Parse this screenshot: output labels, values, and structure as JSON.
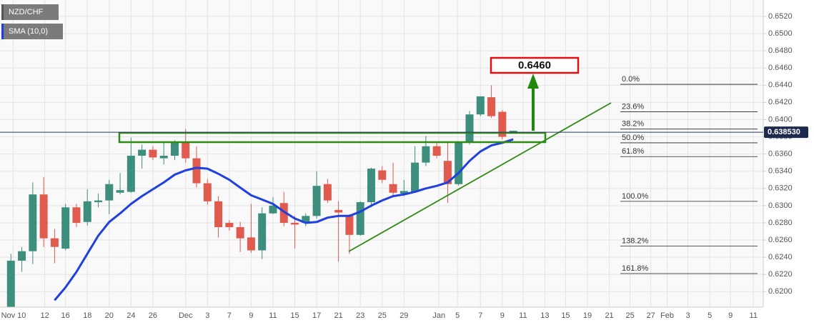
{
  "chart_data": {
    "type": "candlestick",
    "symbol_label": "NZD/CHF",
    "up_color": "#3e8e7e",
    "down_color": "#e05a4e",
    "candles": {
      "open": [
        0.618,
        0.6236,
        0.6247,
        0.6313,
        0.6262,
        0.625,
        0.6298,
        0.6281,
        0.6304,
        0.6306,
        0.6315,
        0.6316,
        0.6358,
        0.6365,
        0.6355,
        0.6358,
        0.6373,
        0.6355,
        0.6326,
        0.6305,
        0.628,
        0.6275,
        0.6263,
        0.6248,
        0.6291,
        0.6303,
        0.628,
        0.628,
        0.6288,
        0.6325,
        0.6295,
        0.6288,
        0.6266,
        0.6304,
        0.6341,
        0.6325,
        0.6314,
        0.6316,
        0.635,
        0.6369,
        0.6352,
        0.6325,
        0.6373,
        0.6406,
        0.6426,
        0.6409,
        0.6385
      ],
      "high": [
        0.6244,
        0.6252,
        0.6327,
        0.6333,
        0.6273,
        0.6302,
        0.6302,
        0.6319,
        0.6314,
        0.633,
        0.6338,
        0.6379,
        0.6371,
        0.6369,
        0.6375,
        0.6376,
        0.6389,
        0.6369,
        0.6331,
        0.6311,
        0.6283,
        0.6281,
        0.6302,
        0.6298,
        0.631,
        0.6316,
        0.6288,
        0.6291,
        0.634,
        0.6331,
        0.6305,
        0.629,
        0.6305,
        0.6344,
        0.6346,
        0.635,
        0.633,
        0.6369,
        0.6381,
        0.6373,
        0.6373,
        0.6375,
        0.641,
        0.6427,
        0.644,
        0.6411,
        0.6387
      ],
      "low": [
        0.618,
        0.6223,
        0.6232,
        0.6252,
        0.6233,
        0.6248,
        0.6275,
        0.6277,
        0.6298,
        0.629,
        0.6313,
        0.6315,
        0.6343,
        0.6353,
        0.6348,
        0.6353,
        0.635,
        0.6321,
        0.6301,
        0.6263,
        0.6271,
        0.6246,
        0.6245,
        0.6238,
        0.629,
        0.6276,
        0.625,
        0.6276,
        0.6285,
        0.6303,
        0.6235,
        0.6244,
        0.6265,
        0.6298,
        0.6326,
        0.6311,
        0.6311,
        0.6315,
        0.6346,
        0.6355,
        0.6303,
        0.6323,
        0.6371,
        0.6404,
        0.6402,
        0.6377,
        0.6384
      ],
      "close": [
        0.6236,
        0.6247,
        0.6313,
        0.6262,
        0.6252,
        0.6298,
        0.628,
        0.6305,
        0.6306,
        0.6325,
        0.6318,
        0.6358,
        0.6365,
        0.6356,
        0.6358,
        0.6373,
        0.6355,
        0.6326,
        0.6305,
        0.6275,
        0.6275,
        0.6262,
        0.6248,
        0.6291,
        0.63,
        0.628,
        0.6278,
        0.6288,
        0.6323,
        0.6306,
        0.6292,
        0.6266,
        0.6304,
        0.6343,
        0.633,
        0.6315,
        0.6317,
        0.635,
        0.6369,
        0.6358,
        0.6325,
        0.6373,
        0.6406,
        0.6427,
        0.6404,
        0.638,
        0.6387
      ]
    },
    "sma": {
      "name": "SMA (10,0)",
      "color": "#1f3fe0",
      "values": [
        null,
        null,
        null,
        null,
        0.619,
        0.6205,
        0.6223,
        0.6244,
        0.6265,
        0.6281,
        0.6291,
        0.6302,
        0.6311,
        0.6319,
        0.6327,
        0.6336,
        0.6341,
        0.6344,
        0.6343,
        0.6337,
        0.633,
        0.6321,
        0.6312,
        0.6307,
        0.6302,
        0.6293,
        0.6285,
        0.628,
        0.6281,
        0.6286,
        0.6288,
        0.6288,
        0.6293,
        0.63,
        0.6306,
        0.6311,
        0.6313,
        0.6316,
        0.632,
        0.6323,
        0.6327,
        0.6338,
        0.6352,
        0.6363,
        0.637,
        0.6373,
        0.6377
      ]
    },
    "ylim": [
      0.6182,
      0.6539
    ],
    "yticks": [
      {
        "value": 0.62,
        "label": "0.6200"
      },
      {
        "value": 0.622,
        "label": "0.6220"
      },
      {
        "value": 0.624,
        "label": "0.6240"
      },
      {
        "value": 0.626,
        "label": "0.6260"
      },
      {
        "value": 0.628,
        "label": "0.6280"
      },
      {
        "value": 0.63,
        "label": "0.6300"
      },
      {
        "value": 0.632,
        "label": "0.6320"
      },
      {
        "value": 0.634,
        "label": "0.6340"
      },
      {
        "value": 0.636,
        "label": "0.6360"
      },
      {
        "value": 0.638,
        "label": "0.6380"
      },
      {
        "value": 0.64,
        "label": "0.6400"
      },
      {
        "value": 0.642,
        "label": "0.6420"
      },
      {
        "value": 0.644,
        "label": "0.6440"
      },
      {
        "value": 0.646,
        "label": "0.6460"
      },
      {
        "value": 0.648,
        "label": "0.6480"
      },
      {
        "value": 0.65,
        "label": "0.6500"
      },
      {
        "value": 0.652,
        "label": "0.6520"
      }
    ],
    "xlim": [
      -1,
      68.9
    ],
    "xticks": [
      {
        "value": 0.2,
        "label": "Nov 10"
      },
      {
        "value": 3.1,
        "label": "12"
      },
      {
        "value": 5,
        "label": "16"
      },
      {
        "value": 7,
        "label": "18"
      },
      {
        "value": 9,
        "label": "20"
      },
      {
        "value": 11,
        "label": "24"
      },
      {
        "value": 13,
        "label": "26"
      },
      {
        "value": 16,
        "label": "Dec"
      },
      {
        "value": 18,
        "label": "3"
      },
      {
        "value": 20,
        "label": "7"
      },
      {
        "value": 22,
        "label": "9"
      },
      {
        "value": 24,
        "label": "11"
      },
      {
        "value": 26,
        "label": "15"
      },
      {
        "value": 28,
        "label": "17"
      },
      {
        "value": 30,
        "label": "21"
      },
      {
        "value": 32,
        "label": "23"
      },
      {
        "value": 34,
        "label": "25"
      },
      {
        "value": 36,
        "label": "29"
      },
      {
        "value": 39.2,
        "label": "Jan"
      },
      {
        "value": 40.9,
        "label": "5"
      },
      {
        "value": 43,
        "label": "7"
      },
      {
        "value": 45,
        "label": "9"
      },
      {
        "value": 46.9,
        "label": "11"
      },
      {
        "value": 48.9,
        "label": "13"
      },
      {
        "value": 50.8,
        "label": "15"
      },
      {
        "value": 52.8,
        "label": "19"
      },
      {
        "value": 54.8,
        "label": "21"
      },
      {
        "value": 56.7,
        "label": "25"
      },
      {
        "value": 58.6,
        "label": "27"
      },
      {
        "value": 60.1,
        "label": "Feb"
      },
      {
        "value": 62,
        "label": "3"
      },
      {
        "value": 64,
        "label": "5"
      },
      {
        "value": 65.9,
        "label": "9"
      },
      {
        "value": 68,
        "label": "11"
      }
    ],
    "last_price": {
      "value": 0.63853,
      "label": "0.638530"
    },
    "fib_levels": [
      {
        "label": "0.0%",
        "value": 0.6441
      },
      {
        "label": "23.6%",
        "value": 0.6409
      },
      {
        "label": "38.2%",
        "value": 0.6389
      },
      {
        "label": "50.0%",
        "value": 0.6373
      },
      {
        "label": "61.8%",
        "value": 0.6357
      },
      {
        "label": "100.0%",
        "value": 0.6305
      },
      {
        "label": "138.2%",
        "value": 0.6253
      },
      {
        "label": "161.8%",
        "value": 0.6221
      }
    ],
    "target_label": "0.6460",
    "grid": true
  }
}
